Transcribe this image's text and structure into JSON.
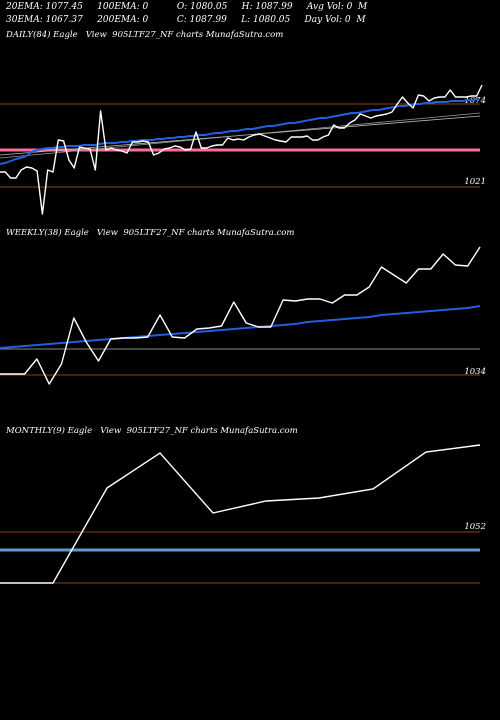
{
  "header": {
    "line1": "20EMA: 1077.45     100EMA: 0          O: 1080.05     H: 1087.99     Avg Vol: 0  M",
    "line2": "30EMA: 1067.37     200EMA: 0          C: 1087.99     L: 1080.05     Day Vol: 0  M"
  },
  "colors": {
    "price": "#ffffff",
    "ema": "#1f5fe0",
    "level_brown": "#8b4513",
    "level_pink": "#ff6b9d",
    "level_blue": "#5b9bd5",
    "level_gray": "#888888"
  },
  "chart_data": [
    {
      "type": "line",
      "title": "DAILY(84) Eagle   View  905LTF27_NF charts MunafaSutra.com",
      "ytick_labels": [
        "1074",
        "1021"
      ],
      "series": [
        {
          "values": [
            172,
            172,
            178,
            178,
            170,
            167,
            168,
            171,
            214,
            170,
            172,
            140,
            141,
            160,
            168,
            147,
            148,
            149,
            170,
            111,
            150,
            148,
            150,
            151,
            153,
            142,
            142,
            141,
            142,
            155,
            153,
            149,
            148,
            146,
            147,
            150,
            149,
            132,
            148,
            148,
            146,
            145,
            145,
            138,
            140,
            139,
            140,
            137,
            135,
            134,
            136,
            138,
            140,
            141,
            142,
            137,
            137,
            137,
            136,
            140,
            140,
            137,
            135,
            125,
            128,
            128,
            123,
            120,
            114,
            116,
            118,
            116,
            115,
            114,
            112,
            104,
            97,
            103,
            108,
            95,
            96,
            101,
            98,
            97,
            97,
            90,
            97,
            97,
            97,
            96,
            96,
            85
          ],
          "role": "price"
        },
        {
          "values": [
            164,
            163,
            161,
            159,
            158,
            156,
            152,
            150,
            149,
            148,
            148,
            147,
            147,
            146,
            146,
            146,
            145,
            145,
            145,
            144,
            143,
            143,
            143,
            142,
            142,
            141,
            141,
            140,
            140,
            140,
            139,
            139,
            138,
            138,
            137,
            137,
            136,
            136,
            135,
            135,
            134,
            133,
            133,
            132,
            131,
            131,
            130,
            129,
            129,
            128,
            127,
            126,
            126,
            125,
            124,
            123,
            123,
            122,
            121,
            120,
            119,
            118,
            118,
            117,
            116,
            115,
            114,
            113,
            113,
            112,
            111,
            110,
            110,
            109,
            108,
            107,
            106,
            106,
            105,
            104,
            104,
            103,
            103,
            102,
            102,
            102,
            101,
            101,
            101,
            100,
            100,
            99
          ],
          "role": "ema"
        }
      ],
      "levels": {
        "pink": 150,
        "brown_top": 104,
        "brown_bottom": 187
      }
    },
    {
      "type": "line",
      "title": "WEEKLY(38) Eagle   View  905LTF27_NF charts MunafaSutra.com",
      "ytick_labels": [
        "1034"
      ],
      "series": [
        {
          "values": [
            374,
            374,
            374,
            359,
            384,
            364,
            318,
            342,
            361,
            339,
            338,
            338,
            337,
            315,
            337,
            338,
            329,
            328,
            326,
            302,
            323,
            327,
            327,
            300,
            301,
            299,
            299,
            303,
            295,
            295,
            287,
            267,
            275,
            283,
            269,
            269,
            254,
            265,
            266,
            247
          ],
          "role": "price"
        },
        {
          "values": [
            348,
            347,
            346,
            345,
            344,
            343,
            342,
            341,
            340,
            339,
            338,
            337,
            336,
            335,
            334,
            333,
            332,
            331,
            330,
            329,
            328,
            327,
            326,
            325,
            324,
            322,
            321,
            320,
            319,
            318,
            317,
            315,
            314,
            313,
            312,
            311,
            310,
            309,
            308,
            306
          ],
          "role": "ema"
        }
      ],
      "levels": {
        "gray": 349,
        "brown": 375
      }
    },
    {
      "type": "line",
      "title": "MONTHLY(9) Eagle   View  905LTF27_NF charts MunafaSutra.com",
      "ytick_labels": [
        "1052"
      ],
      "series": [
        {
          "values": [
            583,
            583,
            488,
            453,
            513,
            501,
            498,
            489,
            452,
            445
          ],
          "role": "price"
        }
      ],
      "levels": {
        "blue": 550,
        "brown_top": 532,
        "brown_bottom": 583
      }
    }
  ]
}
